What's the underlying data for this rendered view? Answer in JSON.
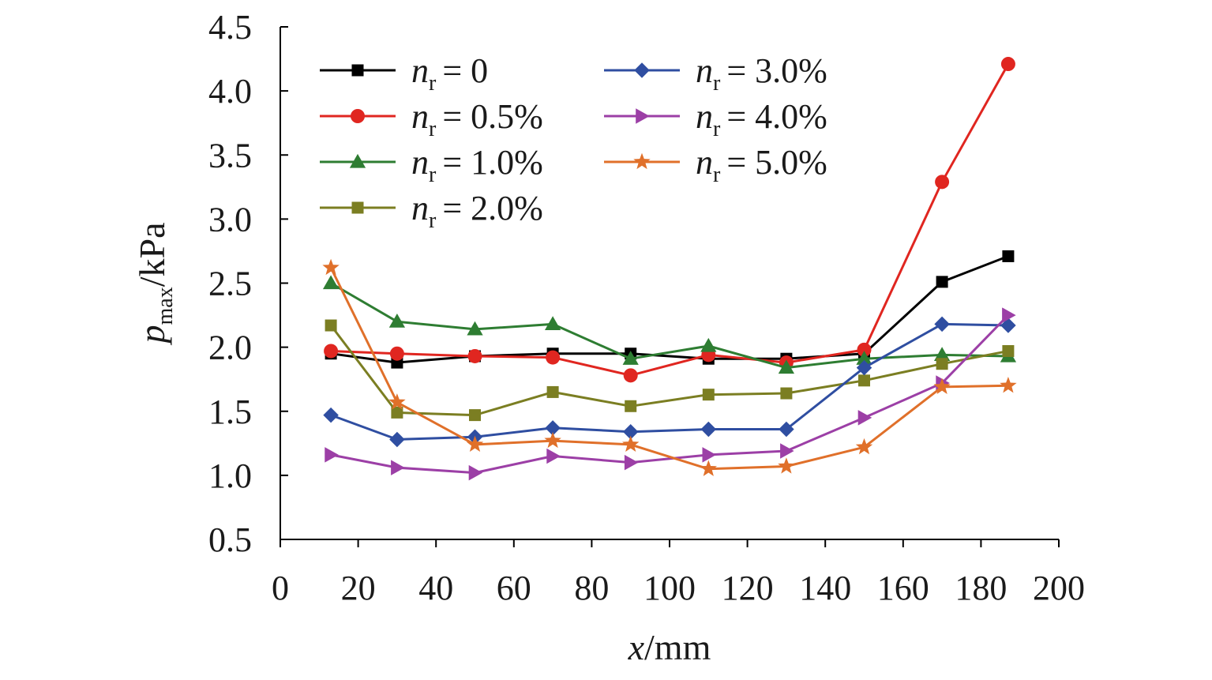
{
  "chart_data": {
    "type": "line",
    "xlabel": {
      "var": "x",
      "unit": "/mm"
    },
    "ylabel": {
      "var": "p",
      "sub": "max",
      "unit": "/kPa"
    },
    "xlim": [
      0,
      200
    ],
    "ylim": [
      0.5,
      4.5
    ],
    "xticks": [
      "0",
      "20",
      "40",
      "60",
      "80",
      "100",
      "120",
      "140",
      "160",
      "180",
      "200"
    ],
    "yticks": [
      "0.5",
      "1.0",
      "1.5",
      "2.0",
      "2.5",
      "3.0",
      "3.5",
      "4.0",
      "4.5"
    ],
    "grid": false,
    "legend_position": "top-left, two columns",
    "x": [
      13,
      30,
      50,
      70,
      90,
      110,
      130,
      150,
      170,
      187
    ],
    "series": [
      {
        "name": "n_r = 0",
        "legend": {
          "var": "n",
          "sub": "r",
          "value": "= 0"
        },
        "color": "#000000",
        "marker": "square",
        "values": [
          1.95,
          1.88,
          1.93,
          1.95,
          1.95,
          1.91,
          1.91,
          1.95,
          2.51,
          2.71
        ]
      },
      {
        "name": "n_r = 0.5%",
        "legend": {
          "var": "n",
          "sub": "r",
          "value": "= 0.5%"
        },
        "color": "#e02620",
        "marker": "circle",
        "values": [
          1.97,
          1.95,
          1.93,
          1.92,
          1.78,
          1.94,
          1.88,
          1.98,
          3.29,
          4.21
        ]
      },
      {
        "name": "n_r = 1.0%",
        "legend": {
          "var": "n",
          "sub": "r",
          "value": "= 1.0%"
        },
        "color": "#2e7d32",
        "marker": "triangle",
        "values": [
          2.5,
          2.2,
          2.14,
          2.18,
          1.91,
          2.01,
          1.84,
          1.91,
          1.94,
          1.93
        ]
      },
      {
        "name": "n_r = 2.0%",
        "legend": {
          "var": "n",
          "sub": "r",
          "value": "= 2.0%"
        },
        "color": "#7b7e22",
        "marker": "square",
        "values": [
          2.17,
          1.49,
          1.47,
          1.65,
          1.54,
          1.63,
          1.64,
          1.74,
          1.87,
          1.97
        ]
      },
      {
        "name": "n_r = 3.0%",
        "legend": {
          "var": "n",
          "sub": "r",
          "value": "= 3.0%"
        },
        "color": "#2f4ea1",
        "marker": "diamond",
        "values": [
          1.47,
          1.28,
          1.3,
          1.37,
          1.34,
          1.36,
          1.36,
          1.84,
          2.18,
          2.17
        ]
      },
      {
        "name": "n_r = 4.0%",
        "legend": {
          "var": "n",
          "sub": "r",
          "value": "= 4.0%"
        },
        "color": "#9c3fa6",
        "marker": "triangle-right",
        "values": [
          1.16,
          1.06,
          1.02,
          1.15,
          1.1,
          1.16,
          1.19,
          1.45,
          1.72,
          2.25
        ]
      },
      {
        "name": "n_r = 5.0%",
        "legend": {
          "var": "n",
          "sub": "r",
          "value": "= 5.0%"
        },
        "color": "#e0702a",
        "marker": "star",
        "values": [
          2.62,
          1.57,
          1.24,
          1.27,
          1.24,
          1.05,
          1.07,
          1.22,
          1.69,
          1.7
        ]
      }
    ]
  }
}
